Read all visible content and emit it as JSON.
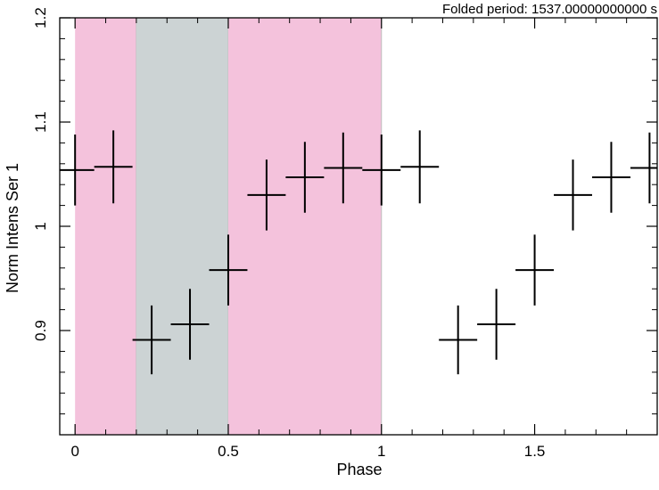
{
  "chart_data": {
    "type": "scatter",
    "title": "Folded period: 1537.00000000000 s",
    "xlabel": "Phase",
    "ylabel": "Norm Intens Ser 1",
    "xlim": [
      -0.05,
      1.9
    ],
    "ylim": [
      0.8,
      1.2
    ],
    "xticks": [
      0,
      0.5,
      1,
      1.5
    ],
    "xtick_labels": [
      "0",
      "0.5",
      "1",
      "1.5"
    ],
    "yticks": [
      0.9,
      1.0,
      1.1,
      1.2
    ],
    "ytick_labels": [
      "0.9",
      "1",
      "1.1",
      "1.2"
    ],
    "grid": false,
    "shaded_regions": [
      {
        "x0": 0.0,
        "x1": 0.2,
        "color": "#f4c2dc"
      },
      {
        "x0": 0.2,
        "x1": 0.5,
        "color": "#ccd3d4"
      },
      {
        "x0": 0.5,
        "x1": 1.0,
        "color": "#f4c2dc"
      }
    ],
    "series": [
      {
        "x": [
          0.0,
          0.125,
          0.25,
          0.375,
          0.5,
          0.625,
          0.75,
          0.875,
          1.0,
          1.125,
          1.25,
          1.375,
          1.5,
          1.625,
          1.75,
          1.875
        ],
        "xerr": [
          0.0625,
          0.0625,
          0.0625,
          0.0625,
          0.0625,
          0.0625,
          0.0625,
          0.0625,
          0.0625,
          0.0625,
          0.0625,
          0.0625,
          0.0625,
          0.0625,
          0.0625,
          0.0625
        ],
        "y": [
          1.054,
          1.057,
          0.891,
          0.906,
          0.958,
          1.03,
          1.047,
          1.056,
          1.054,
          1.057,
          0.891,
          0.906,
          0.958,
          1.03,
          1.047,
          1.056
        ],
        "yerr": [
          0.034,
          0.035,
          0.033,
          0.034,
          0.034,
          0.034,
          0.034,
          0.034,
          0.034,
          0.035,
          0.033,
          0.034,
          0.034,
          0.034,
          0.034,
          0.034
        ],
        "color": "#000000"
      }
    ]
  }
}
